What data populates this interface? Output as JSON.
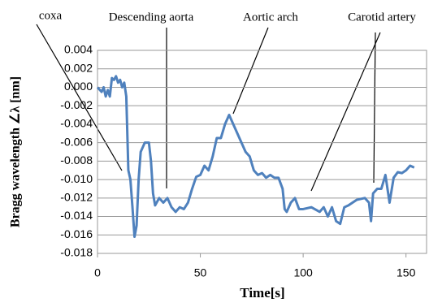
{
  "chart_data": {
    "type": "line",
    "xlabel": "Time[s]",
    "ylabel": "Bragg wavelength ∠λ [nm]",
    "annotations": [
      "coxa",
      "Descending aorta",
      "Aortic arch",
      "Carotid artery"
    ],
    "x": [
      0,
      2,
      3,
      4,
      5,
      6,
      7,
      8,
      9,
      10,
      11,
      12,
      13,
      14,
      15,
      16,
      17,
      18,
      19,
      20,
      21,
      22,
      23,
      25,
      26,
      27,
      28,
      30,
      32,
      34,
      36,
      38,
      40,
      42,
      44,
      46,
      48,
      50,
      52,
      54,
      56,
      58,
      60,
      62,
      64,
      66,
      68,
      70,
      72,
      74,
      76,
      78,
      80,
      82,
      84,
      86,
      88,
      90,
      91,
      92,
      94,
      96,
      98,
      100,
      104,
      108,
      110,
      112,
      114,
      116,
      118,
      120,
      122,
      126,
      130,
      132,
      133,
      134,
      136,
      138,
      140,
      142,
      144,
      146,
      148,
      150,
      152,
      154
    ],
    "series": [
      {
        "name": "Bragg wavelength",
        "color": "#4f81bd",
        "values": [
          0.0,
          -0.0005,
          0.0,
          -0.001,
          -0.0003,
          -0.001,
          0.001,
          0.0008,
          0.0012,
          0.0005,
          0.0008,
          0.0,
          0.0005,
          -0.001,
          -0.009,
          -0.01,
          -0.013,
          -0.0162,
          -0.015,
          -0.01,
          -0.007,
          -0.0065,
          -0.006,
          -0.006,
          -0.008,
          -0.0115,
          -0.0128,
          -0.012,
          -0.0125,
          -0.012,
          -0.013,
          -0.0135,
          -0.013,
          -0.0132,
          -0.0125,
          -0.011,
          -0.0097,
          -0.0095,
          -0.0085,
          -0.009,
          -0.0075,
          -0.0055,
          -0.0055,
          -0.004,
          -0.003,
          -0.004,
          -0.005,
          -0.006,
          -0.007,
          -0.0075,
          -0.009,
          -0.0095,
          -0.0093,
          -0.0098,
          -0.0095,
          -0.0098,
          -0.0098,
          -0.011,
          -0.0132,
          -0.0135,
          -0.0125,
          -0.012,
          -0.0132,
          -0.0132,
          -0.013,
          -0.0135,
          -0.013,
          -0.014,
          -0.013,
          -0.0145,
          -0.0148,
          -0.013,
          -0.0128,
          -0.0122,
          -0.012,
          -0.0125,
          -0.0145,
          -0.0115,
          -0.011,
          -0.011,
          -0.0095,
          -0.0125,
          -0.0098,
          -0.0092,
          -0.0093,
          -0.009,
          -0.0085,
          -0.0087
        ]
      }
    ],
    "xlim": [
      0,
      160
    ],
    "xticks": [
      0,
      50,
      100,
      150
    ],
    "ylim": [
      -0.018,
      0.004
    ],
    "yticks": [
      {
        "value": 0.004,
        "label": "0.004"
      },
      {
        "value": 0.002,
        "label": "0.002"
      },
      {
        "value": 0,
        "label": "0.000"
      },
      {
        "value": -0.002,
        "label": "-0.002"
      },
      {
        "value": -0.004,
        "label": "-0.004"
      },
      {
        "value": -0.006,
        "label": "-0.006"
      },
      {
        "value": -0.008,
        "label": "-0.008"
      },
      {
        "value": -0.01,
        "label": "-0.010"
      },
      {
        "value": -0.012,
        "label": "-0.012"
      },
      {
        "value": -0.014,
        "label": "-0.014"
      },
      {
        "value": -0.016,
        "label": "-0.016"
      },
      {
        "value": -0.018,
        "label": "-0.018"
      }
    ],
    "grid": true
  }
}
